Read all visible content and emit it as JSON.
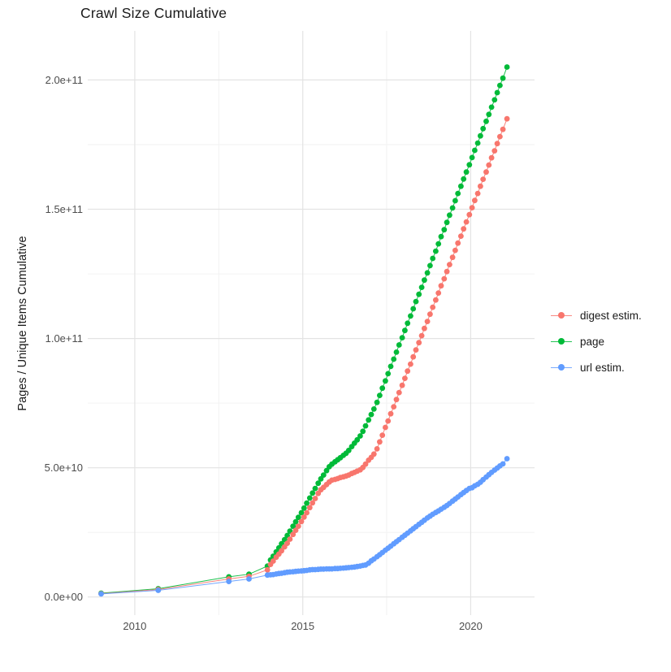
{
  "title": "Crawl Size Cumulative",
  "chart_data": {
    "type": "scatter",
    "title": "Crawl Size Cumulative",
    "xlabel": "",
    "ylabel": "Pages / Unique Items Cumulative",
    "value_unit": "1e9 (billions of pages / items)",
    "xlim": [
      2008.6,
      2021.9
    ],
    "ylim": [
      -7,
      219
    ],
    "grid": {
      "major_color": "#e3e3e3",
      "minor_color": "#f1f1f1",
      "background": "#ffffff"
    },
    "x_ticks": {
      "values": [
        2010,
        2015,
        2020
      ],
      "labels": [
        "2010",
        "2015",
        "2020"
      ],
      "minor_values": [
        2012.5,
        2017.5
      ]
    },
    "y_ticks": {
      "values": [
        200,
        150,
        100,
        50,
        0
      ],
      "labels": [
        "2.0e+11",
        "1.5e+11",
        "1.0e+11",
        "5.0e+10",
        "0.0e+00"
      ],
      "minor_values": [
        175,
        125,
        75,
        25
      ]
    },
    "legend": {
      "position": "right",
      "entries": [
        {
          "label": "digest estim.",
          "color": "#F8766D"
        },
        {
          "label": "page",
          "color": "#00BA38"
        },
        {
          "label": "url estim.",
          "color": "#619CFF"
        }
      ]
    },
    "series": [
      {
        "name": "page",
        "color": "#00BA38",
        "points": [
          [
            2009.0,
            1.5
          ],
          [
            2010.7,
            3.2
          ],
          [
            2012.8,
            7.8
          ],
          [
            2013.4,
            8.8
          ],
          [
            2013.95,
            12.0
          ],
          [
            2014.04,
            14.3
          ],
          [
            2014.12,
            15.8
          ],
          [
            2014.21,
            17.5
          ],
          [
            2014.29,
            19.0
          ],
          [
            2014.37,
            20.6
          ],
          [
            2014.46,
            22.2
          ],
          [
            2014.54,
            23.8
          ],
          [
            2014.62,
            25.5
          ],
          [
            2014.71,
            27.4
          ],
          [
            2014.79,
            29.1
          ],
          [
            2014.87,
            30.8
          ],
          [
            2014.96,
            32.6
          ],
          [
            2015.04,
            34.4
          ],
          [
            2015.12,
            36.3
          ],
          [
            2015.21,
            38.3
          ],
          [
            2015.29,
            40.2
          ],
          [
            2015.37,
            42.0
          ],
          [
            2015.46,
            44.0
          ],
          [
            2015.54,
            45.7
          ],
          [
            2015.62,
            47.2
          ],
          [
            2015.71,
            48.9
          ],
          [
            2015.79,
            50.4
          ],
          [
            2015.87,
            51.4
          ],
          [
            2015.96,
            52.3
          ],
          [
            2016.04,
            53.1
          ],
          [
            2016.12,
            53.9
          ],
          [
            2016.21,
            54.8
          ],
          [
            2016.29,
            55.6
          ],
          [
            2016.37,
            56.7
          ],
          [
            2016.46,
            58.2
          ],
          [
            2016.54,
            59.5
          ],
          [
            2016.62,
            60.8
          ],
          [
            2016.71,
            62.3
          ],
          [
            2016.79,
            64.1
          ],
          [
            2016.87,
            66.2
          ],
          [
            2016.96,
            68.5
          ],
          [
            2017.04,
            70.6
          ],
          [
            2017.12,
            72.7
          ],
          [
            2017.21,
            75.3
          ],
          [
            2017.29,
            78.0
          ],
          [
            2017.37,
            80.8
          ],
          [
            2017.46,
            83.6
          ],
          [
            2017.54,
            86.4
          ],
          [
            2017.62,
            89.2
          ],
          [
            2017.71,
            92.0
          ],
          [
            2017.79,
            94.7
          ],
          [
            2017.87,
            97.5
          ],
          [
            2017.96,
            100.3
          ],
          [
            2018.04,
            103.1
          ],
          [
            2018.12,
            105.9
          ],
          [
            2018.21,
            108.7
          ],
          [
            2018.29,
            111.5
          ],
          [
            2018.37,
            114.3
          ],
          [
            2018.46,
            117.1
          ],
          [
            2018.54,
            119.8
          ],
          [
            2018.62,
            122.6
          ],
          [
            2018.71,
            125.4
          ],
          [
            2018.79,
            128.2
          ],
          [
            2018.87,
            131.0
          ],
          [
            2018.96,
            133.8
          ],
          [
            2019.04,
            136.6
          ],
          [
            2019.12,
            139.4
          ],
          [
            2019.21,
            142.1
          ],
          [
            2019.29,
            144.9
          ],
          [
            2019.37,
            147.7
          ],
          [
            2019.46,
            150.5
          ],
          [
            2019.54,
            153.3
          ],
          [
            2019.62,
            156.1
          ],
          [
            2019.71,
            158.9
          ],
          [
            2019.79,
            161.7
          ],
          [
            2019.87,
            164.4
          ],
          [
            2019.96,
            167.2
          ],
          [
            2020.04,
            170.0
          ],
          [
            2020.12,
            172.8
          ],
          [
            2020.21,
            175.6
          ],
          [
            2020.29,
            178.4
          ],
          [
            2020.37,
            181.2
          ],
          [
            2020.46,
            184.0
          ],
          [
            2020.54,
            186.7
          ],
          [
            2020.62,
            189.5
          ],
          [
            2020.71,
            192.3
          ],
          [
            2020.79,
            195.1
          ],
          [
            2020.87,
            197.9
          ],
          [
            2020.96,
            200.7
          ],
          [
            2021.08,
            205.0
          ]
        ]
      },
      {
        "name": "digest estim.",
        "color": "#F8766D",
        "points": [
          [
            2009.0,
            1.3
          ],
          [
            2010.7,
            2.9
          ],
          [
            2012.8,
            7.0
          ],
          [
            2013.4,
            8.0
          ],
          [
            2013.95,
            10.5
          ],
          [
            2014.04,
            12.6
          ],
          [
            2014.12,
            13.9
          ],
          [
            2014.21,
            15.4
          ],
          [
            2014.29,
            16.6
          ],
          [
            2014.37,
            17.9
          ],
          [
            2014.46,
            19.4
          ],
          [
            2014.54,
            20.8
          ],
          [
            2014.62,
            22.4
          ],
          [
            2014.71,
            24.2
          ],
          [
            2014.79,
            25.8
          ],
          [
            2014.87,
            27.4
          ],
          [
            2014.96,
            29.2
          ],
          [
            2015.04,
            30.9
          ],
          [
            2015.12,
            32.6
          ],
          [
            2015.21,
            34.6
          ],
          [
            2015.29,
            36.4
          ],
          [
            2015.37,
            38.1
          ],
          [
            2015.46,
            40.1
          ],
          [
            2015.54,
            41.5
          ],
          [
            2015.62,
            42.4
          ],
          [
            2015.71,
            43.5
          ],
          [
            2015.79,
            44.5
          ],
          [
            2015.87,
            45.2
          ],
          [
            2015.96,
            45.5
          ],
          [
            2016.04,
            45.8
          ],
          [
            2016.12,
            46.2
          ],
          [
            2016.21,
            46.5
          ],
          [
            2016.29,
            46.8
          ],
          [
            2016.37,
            47.2
          ],
          [
            2016.46,
            47.8
          ],
          [
            2016.54,
            48.2
          ],
          [
            2016.62,
            48.7
          ],
          [
            2016.71,
            49.2
          ],
          [
            2016.79,
            50.1
          ],
          [
            2016.87,
            51.4
          ],
          [
            2016.96,
            52.9
          ],
          [
            2017.04,
            54.0
          ],
          [
            2017.12,
            55.3
          ],
          [
            2017.21,
            57.3
          ],
          [
            2017.29,
            60.0
          ],
          [
            2017.37,
            62.6
          ],
          [
            2017.46,
            65.6
          ],
          [
            2017.54,
            68.1
          ],
          [
            2017.62,
            70.9
          ],
          [
            2017.71,
            73.6
          ],
          [
            2017.79,
            76.4
          ],
          [
            2017.87,
            79.1
          ],
          [
            2017.96,
            81.9
          ],
          [
            2018.04,
            84.6
          ],
          [
            2018.12,
            87.4
          ],
          [
            2018.21,
            90.1
          ],
          [
            2018.29,
            92.9
          ],
          [
            2018.37,
            95.6
          ],
          [
            2018.46,
            98.4
          ],
          [
            2018.54,
            101.1
          ],
          [
            2018.62,
            103.9
          ],
          [
            2018.71,
            106.6
          ],
          [
            2018.79,
            109.4
          ],
          [
            2018.87,
            112.1
          ],
          [
            2018.96,
            114.9
          ],
          [
            2019.04,
            117.6
          ],
          [
            2019.12,
            120.4
          ],
          [
            2019.21,
            123.1
          ],
          [
            2019.29,
            125.9
          ],
          [
            2019.37,
            128.6
          ],
          [
            2019.46,
            131.4
          ],
          [
            2019.54,
            134.1
          ],
          [
            2019.62,
            136.9
          ],
          [
            2019.71,
            139.6
          ],
          [
            2019.79,
            142.4
          ],
          [
            2019.87,
            145.1
          ],
          [
            2019.96,
            147.9
          ],
          [
            2020.04,
            150.6
          ],
          [
            2020.12,
            153.4
          ],
          [
            2020.21,
            156.1
          ],
          [
            2020.29,
            158.9
          ],
          [
            2020.37,
            161.6
          ],
          [
            2020.46,
            164.4
          ],
          [
            2020.54,
            167.1
          ],
          [
            2020.62,
            169.9
          ],
          [
            2020.71,
            172.6
          ],
          [
            2020.79,
            175.4
          ],
          [
            2020.87,
            178.1
          ],
          [
            2020.96,
            180.9
          ],
          [
            2021.08,
            185.0
          ]
        ]
      },
      {
        "name": "url estim.",
        "color": "#619CFF",
        "points": [
          [
            2009.0,
            1.2
          ],
          [
            2010.7,
            2.6
          ],
          [
            2012.8,
            6.0
          ],
          [
            2013.4,
            7.0
          ],
          [
            2013.95,
            8.5
          ],
          [
            2014.04,
            8.6
          ],
          [
            2014.12,
            8.7
          ],
          [
            2014.21,
            8.9
          ],
          [
            2014.29,
            9.1
          ],
          [
            2014.37,
            9.2
          ],
          [
            2014.46,
            9.4
          ],
          [
            2014.54,
            9.6
          ],
          [
            2014.62,
            9.7
          ],
          [
            2014.71,
            9.8
          ],
          [
            2014.79,
            9.9
          ],
          [
            2014.87,
            10.0
          ],
          [
            2014.96,
            10.1
          ],
          [
            2015.04,
            10.2
          ],
          [
            2015.12,
            10.3
          ],
          [
            2015.21,
            10.5
          ],
          [
            2015.29,
            10.6
          ],
          [
            2015.37,
            10.6
          ],
          [
            2015.46,
            10.7
          ],
          [
            2015.54,
            10.8
          ],
          [
            2015.62,
            10.8
          ],
          [
            2015.71,
            10.9
          ],
          [
            2015.79,
            10.9
          ],
          [
            2015.87,
            10.9
          ],
          [
            2015.96,
            11.0
          ],
          [
            2016.04,
            11.0
          ],
          [
            2016.12,
            11.1
          ],
          [
            2016.21,
            11.2
          ],
          [
            2016.29,
            11.3
          ],
          [
            2016.37,
            11.4
          ],
          [
            2016.46,
            11.5
          ],
          [
            2016.54,
            11.6
          ],
          [
            2016.62,
            11.8
          ],
          [
            2016.71,
            12.0
          ],
          [
            2016.79,
            12.2
          ],
          [
            2016.87,
            12.4
          ],
          [
            2016.96,
            13.1
          ],
          [
            2017.04,
            14.0
          ],
          [
            2017.12,
            14.7
          ],
          [
            2017.21,
            15.6
          ],
          [
            2017.29,
            16.4
          ],
          [
            2017.37,
            17.2
          ],
          [
            2017.46,
            18.1
          ],
          [
            2017.54,
            18.9
          ],
          [
            2017.62,
            19.7
          ],
          [
            2017.71,
            20.6
          ],
          [
            2017.79,
            21.4
          ],
          [
            2017.87,
            22.2
          ],
          [
            2017.96,
            23.1
          ],
          [
            2018.04,
            23.9
          ],
          [
            2018.12,
            24.7
          ],
          [
            2018.21,
            25.6
          ],
          [
            2018.29,
            26.4
          ],
          [
            2018.37,
            27.2
          ],
          [
            2018.46,
            28.1
          ],
          [
            2018.54,
            28.9
          ],
          [
            2018.62,
            29.7
          ],
          [
            2018.71,
            30.6
          ],
          [
            2018.79,
            31.3
          ],
          [
            2018.87,
            32.0
          ],
          [
            2018.96,
            32.7
          ],
          [
            2019.04,
            33.3
          ],
          [
            2019.12,
            34.0
          ],
          [
            2019.21,
            34.7
          ],
          [
            2019.29,
            35.4
          ],
          [
            2019.37,
            36.2
          ],
          [
            2019.46,
            37.1
          ],
          [
            2019.54,
            37.9
          ],
          [
            2019.62,
            38.7
          ],
          [
            2019.71,
            39.6
          ],
          [
            2019.79,
            40.4
          ],
          [
            2019.87,
            41.2
          ],
          [
            2019.96,
            42.0
          ],
          [
            2020.04,
            42.3
          ],
          [
            2020.12,
            43.0
          ],
          [
            2020.21,
            43.6
          ],
          [
            2020.29,
            44.4
          ],
          [
            2020.37,
            45.4
          ],
          [
            2020.46,
            46.4
          ],
          [
            2020.54,
            47.3
          ],
          [
            2020.62,
            48.2
          ],
          [
            2020.71,
            49.1
          ],
          [
            2020.79,
            49.9
          ],
          [
            2020.87,
            50.7
          ],
          [
            2020.96,
            51.5
          ],
          [
            2021.08,
            53.5
          ]
        ]
      }
    ]
  }
}
